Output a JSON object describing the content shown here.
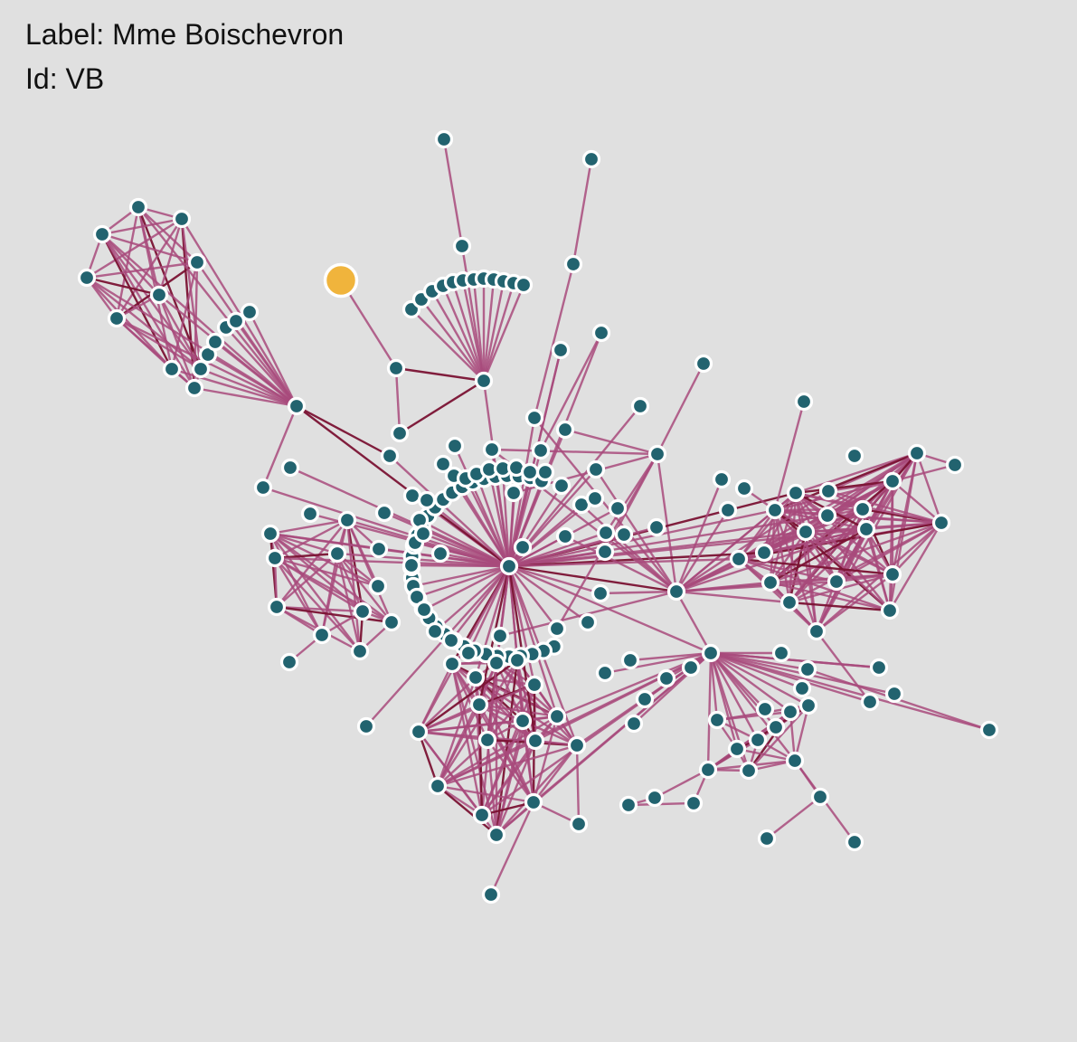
{
  "info": {
    "label_prefix": "Label: ",
    "label_value": "Mme Boischevron",
    "id_prefix": "Id: ",
    "id_value": "VB"
  },
  "colors": {
    "background": "#e0e0e0",
    "node": "#22636f",
    "node_stroke": "#ffffff",
    "selected_node": "#f0b43c",
    "edge": "#a84a7b",
    "edge_strong": "#7a1233"
  },
  "graph": {
    "selected_node_id": "VB"
  }
}
